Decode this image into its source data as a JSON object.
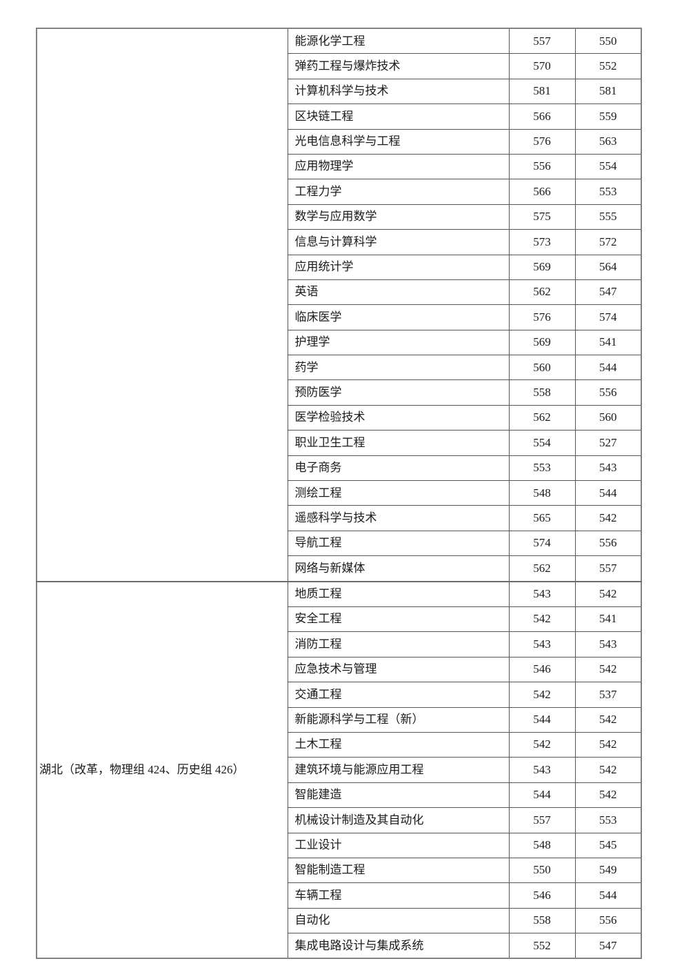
{
  "document": {
    "title": "admission-scores-table",
    "colors": {
      "background": "#ffffff",
      "outer_border": "#828282",
      "inner_border": "#555555",
      "text": "#1a1a1a"
    },
    "columns": [
      "region",
      "major",
      "score_a",
      "score_b"
    ],
    "sections": [
      {
        "region_label": "",
        "rows": [
          [
            "能源化学工程",
            "557",
            "550"
          ],
          [
            "弹药工程与爆炸技术",
            "570",
            "552"
          ],
          [
            "计算机科学与技术",
            "581",
            "581"
          ],
          [
            "区块链工程",
            "566",
            "559"
          ],
          [
            "光电信息科学与工程",
            "576",
            "563"
          ],
          [
            "应用物理学",
            "556",
            "554"
          ],
          [
            "工程力学",
            "566",
            "553"
          ],
          [
            "数学与应用数学",
            "575",
            "555"
          ],
          [
            "信息与计算科学",
            "573",
            "572"
          ],
          [
            "应用统计学",
            "569",
            "564"
          ],
          [
            "英语",
            "562",
            "547"
          ],
          [
            "临床医学",
            "576",
            "574"
          ],
          [
            "护理学",
            "569",
            "541"
          ],
          [
            "药学",
            "560",
            "544"
          ],
          [
            "预防医学",
            "558",
            "556"
          ],
          [
            "医学检验技术",
            "562",
            "560"
          ],
          [
            "职业卫生工程",
            "554",
            "527"
          ],
          [
            "电子商务",
            "553",
            "543"
          ],
          [
            "测绘工程",
            "548",
            "544"
          ],
          [
            "遥感科学与技术",
            "565",
            "542"
          ],
          [
            "导航工程",
            "574",
            "556"
          ],
          [
            "网络与新媒体",
            "562",
            "557"
          ]
        ]
      },
      {
        "region_label": "湖北（改革，物理组 424、历史组 426）",
        "rows": [
          [
            "地质工程",
            "543",
            "542"
          ],
          [
            "安全工程",
            "542",
            "541"
          ],
          [
            "消防工程",
            "543",
            "543"
          ],
          [
            "应急技术与管理",
            "546",
            "542"
          ],
          [
            "交通工程",
            "542",
            "537"
          ],
          [
            "新能源科学与工程（新）",
            "544",
            "542"
          ],
          [
            "土木工程",
            "542",
            "542"
          ],
          [
            "建筑环境与能源应用工程",
            "543",
            "542"
          ],
          [
            "智能建造",
            "544",
            "542"
          ],
          [
            "机械设计制造及其自动化",
            "557",
            "553"
          ],
          [
            "工业设计",
            "548",
            "545"
          ],
          [
            "智能制造工程",
            "550",
            "549"
          ],
          [
            "车辆工程",
            "546",
            "544"
          ],
          [
            "自动化",
            "558",
            "556"
          ],
          [
            "集成电路设计与集成系统",
            "552",
            "547"
          ]
        ]
      }
    ]
  }
}
